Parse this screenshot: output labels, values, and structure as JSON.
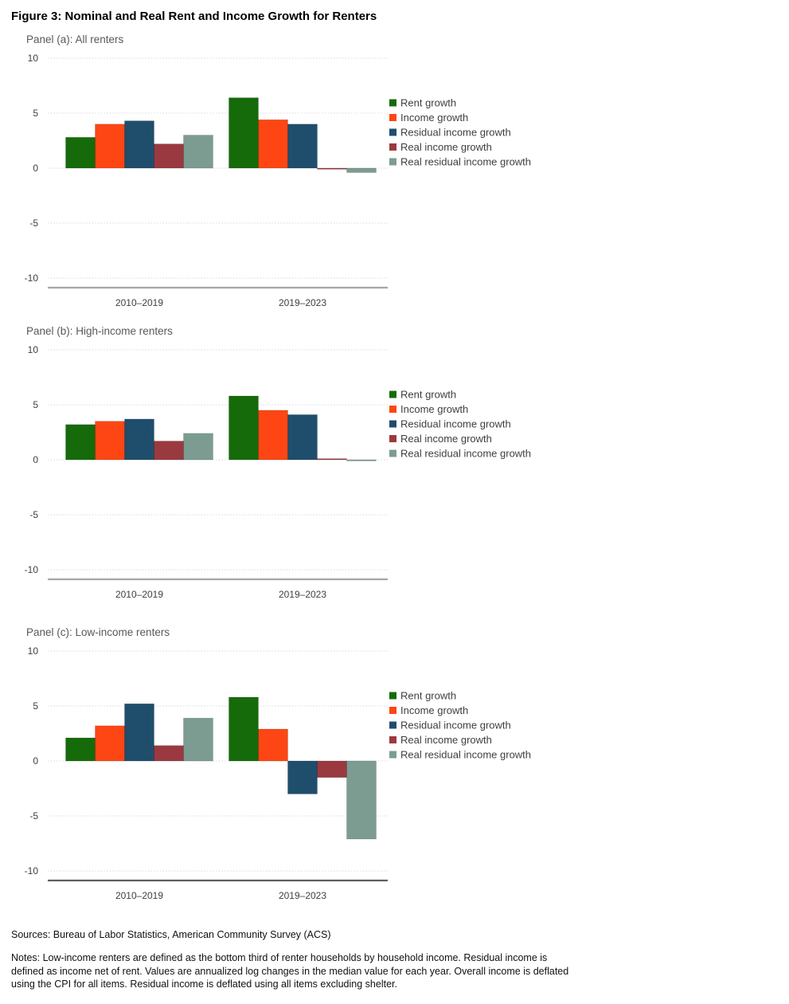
{
  "figure": {
    "title": "Figure 3: Nominal and Real Rent and Income Growth for Renters"
  },
  "colors": {
    "rent_growth": "#156b0a",
    "income_growth": "#fd4613",
    "residual_income_growth": "#1f4e6d",
    "real_income_growth": "#9a3a40",
    "real_residual_income_growth": "#7c9c92",
    "gridline": "#d9d9d9",
    "axis_line_ab": "#a6a6a6",
    "axis_line_c": "#5f5f5f",
    "tick_label": "#404040",
    "legend_text": "#3f3f3f",
    "panel_title": "#595959"
  },
  "chart_data": [
    {
      "type": "bar",
      "title": "Panel (a): All renters",
      "categories": [
        "2010–2019",
        "2019–2023"
      ],
      "series": [
        {
          "name": "Rent growth",
          "color_key": "rent_growth",
          "values": [
            2.8,
            6.4
          ]
        },
        {
          "name": "Income growth",
          "color_key": "income_growth",
          "values": [
            4.0,
            4.4
          ]
        },
        {
          "name": "Residual income growth",
          "color_key": "residual_income_growth",
          "values": [
            4.3,
            4.0
          ]
        },
        {
          "name": "Real income growth",
          "color_key": "real_income_growth",
          "values": [
            2.2,
            -0.1
          ]
        },
        {
          "name": "Real residual income growth",
          "color_key": "real_residual_income_growth",
          "values": [
            3.0,
            -0.4
          ]
        }
      ],
      "ylim": [
        -10,
        10
      ],
      "yticks": [
        10,
        5,
        0,
        -5,
        -10
      ],
      "grid": "dotted-horizontal",
      "legend_position": "right",
      "axis_color_key": "axis_line_ab"
    },
    {
      "type": "bar",
      "title": "Panel (b): High-income renters",
      "categories": [
        "2010–2019",
        "2019–2023"
      ],
      "series": [
        {
          "name": "Rent growth",
          "color_key": "rent_growth",
          "values": [
            3.2,
            5.8
          ]
        },
        {
          "name": "Income growth",
          "color_key": "income_growth",
          "values": [
            3.5,
            4.5
          ]
        },
        {
          "name": "Residual income growth",
          "color_key": "residual_income_growth",
          "values": [
            3.7,
            4.1
          ]
        },
        {
          "name": "Real income growth",
          "color_key": "real_income_growth",
          "values": [
            1.7,
            0.1
          ]
        },
        {
          "name": "Real residual income growth",
          "color_key": "real_residual_income_growth",
          "values": [
            2.4,
            -0.1
          ]
        }
      ],
      "ylim": [
        -10,
        10
      ],
      "yticks": [
        10,
        5,
        0,
        -5,
        -10
      ],
      "grid": "dotted-horizontal",
      "legend_position": "right",
      "axis_color_key": "axis_line_ab"
    },
    {
      "type": "bar",
      "title": "Panel (c): Low-income renters",
      "categories": [
        "2010–2019",
        "2019–2023"
      ],
      "series": [
        {
          "name": "Rent growth",
          "color_key": "rent_growth",
          "values": [
            2.1,
            5.8
          ]
        },
        {
          "name": "Income growth",
          "color_key": "income_growth",
          "values": [
            3.2,
            2.9
          ]
        },
        {
          "name": "Residual income growth",
          "color_key": "residual_income_growth",
          "values": [
            5.2,
            -3.0
          ]
        },
        {
          "name": "Real income growth",
          "color_key": "real_income_growth",
          "values": [
            1.4,
            -1.5
          ]
        },
        {
          "name": "Real residual income growth",
          "color_key": "real_residual_income_growth",
          "values": [
            3.9,
            -7.1
          ]
        }
      ],
      "ylim": [
        -10,
        10
      ],
      "yticks": [
        10,
        5,
        0,
        -5,
        -10
      ],
      "grid": "dotted-horizontal",
      "legend_position": "right",
      "axis_color_key": "axis_line_c"
    }
  ],
  "footer": {
    "sources": "Sources: Bureau of Labor Statistics, American Community Survey (ACS)",
    "notes": "Notes: Low-income renters are defined as the bottom third of renter households by household income. Residual income is defined as income net of rent. Values are annualized log changes in the median value for each year. Overall income is deflated using the CPI for all items. Residual income is deflated using all items excluding shelter."
  }
}
